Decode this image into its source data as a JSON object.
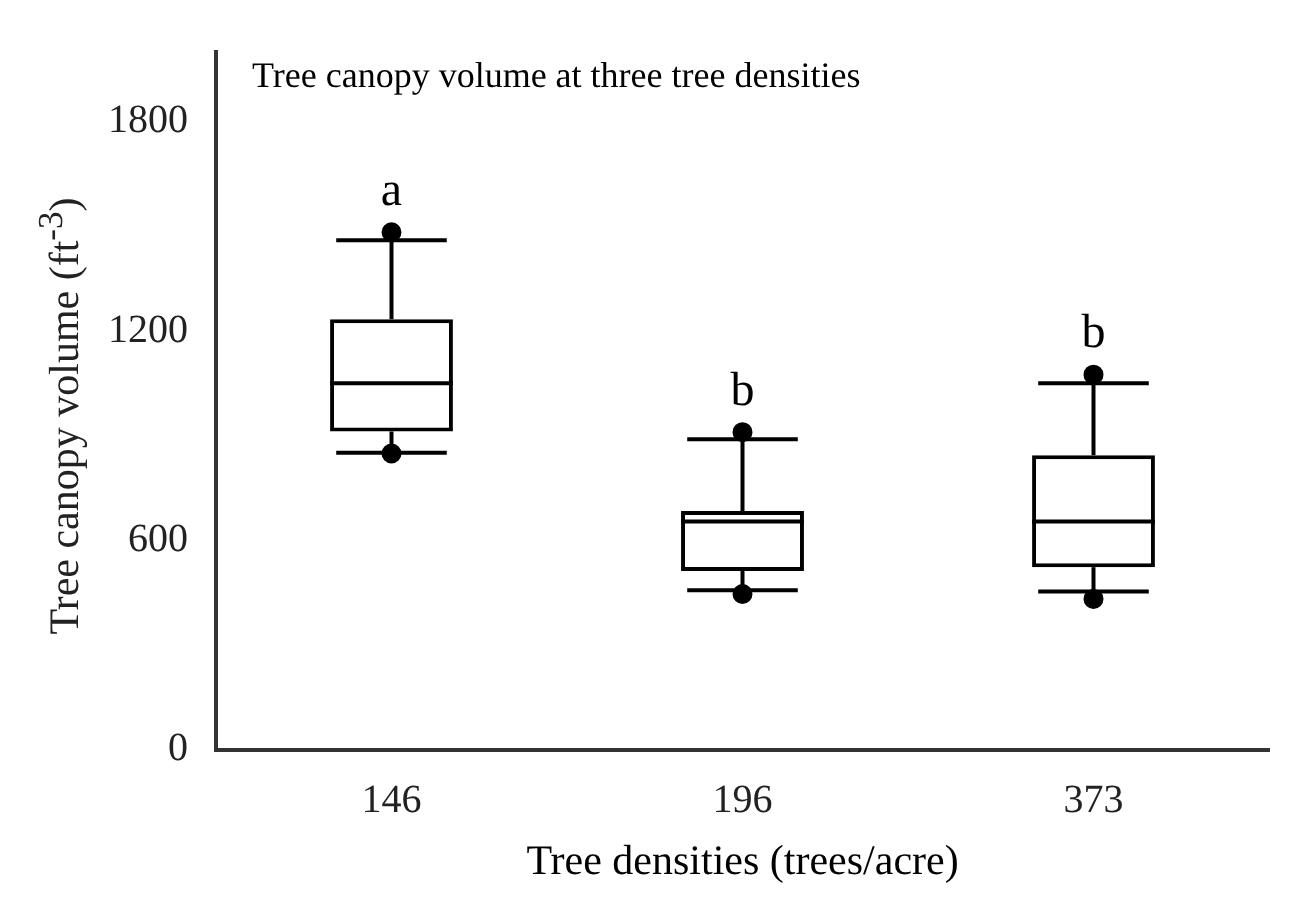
{
  "chart_data": {
    "type": "box",
    "title": "Tree canopy volume at three tree densities",
    "xlabel": "Tree densities (trees/acre)",
    "ylabel": "Tree canopy volume (ft$^{-3}$)",
    "categories": [
      "146",
      "196",
      "373"
    ],
    "boxes": [
      {
        "low": 851,
        "q1": 912,
        "median": 1050,
        "q3": 1234,
        "high": 1460,
        "outliers": [
          1483,
          849
        ]
      },
      {
        "low": 457,
        "q1": 512,
        "median": 654,
        "q3": 684,
        "high": 890,
        "outliers": [
          910,
          446
        ]
      },
      {
        "low": 453,
        "q1": 523,
        "median": 654,
        "q3": 844,
        "high": 1050,
        "outliers": [
          1075,
          432
        ]
      }
    ],
    "annotations": [
      "a",
      "b",
      "b"
    ],
    "ylim": [
      0,
      2000
    ],
    "yticks": [
      0,
      600,
      1200,
      1800
    ],
    "grid": false,
    "legend": false,
    "marker": "circle"
  }
}
